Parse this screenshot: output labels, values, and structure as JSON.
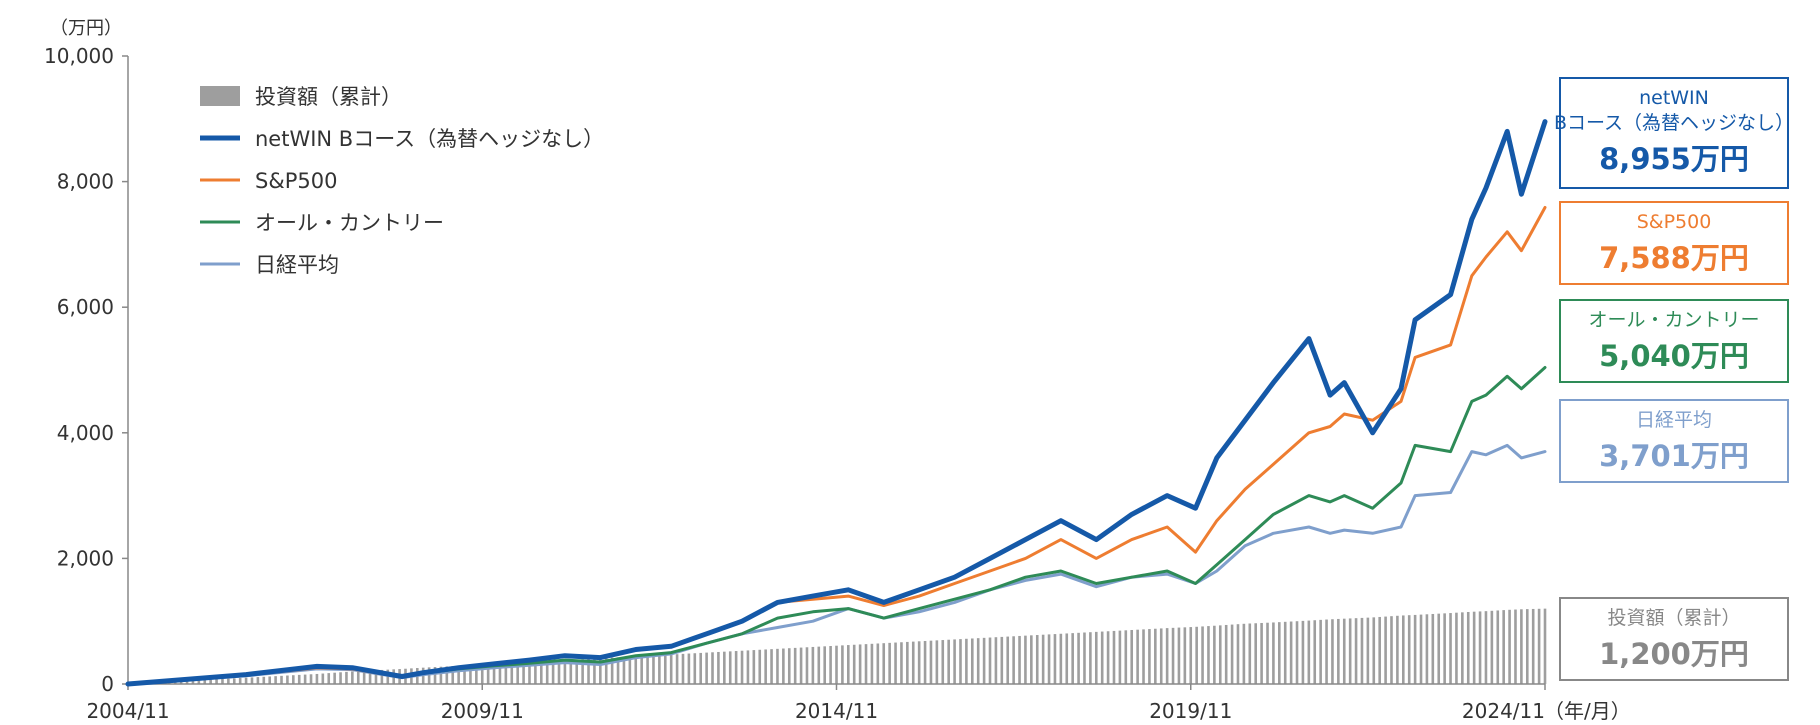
{
  "chart_data": {
    "type": "line",
    "y_unit": "（万円）",
    "x_unit": "（年/月）",
    "ylim": [
      0,
      10000
    ],
    "y_ticks": [
      "0",
      "2,000",
      "4,000",
      "6,000",
      "8,000",
      "10,000"
    ],
    "y_tick_values": [
      0,
      2000,
      4000,
      6000,
      8000,
      10000
    ],
    "x_ticks": [
      "2004/11",
      "2009/11",
      "2014/11",
      "2019/11",
      "2024/11"
    ],
    "x_tick_values": [
      2004.833,
      2009.833,
      2014.833,
      2019.833,
      2024.833
    ],
    "xlim": [
      2004.833,
      2024.833
    ],
    "grid": false,
    "legend_placement": "top-left",
    "x": [
      2004.833,
      2005.5,
      2006.5,
      2007.5,
      2008.0,
      2008.7,
      2009.0,
      2009.5,
      2010.0,
      2010.5,
      2011.0,
      2011.5,
      2012.0,
      2012.5,
      2013.0,
      2013.5,
      2014.0,
      2014.5,
      2015.0,
      2015.5,
      2016.0,
      2016.5,
      2017.0,
      2017.5,
      2018.0,
      2018.5,
      2019.0,
      2019.5,
      2019.9,
      2020.2,
      2020.6,
      2021.0,
      2021.5,
      2021.8,
      2022.0,
      2022.4,
      2022.8,
      2023.0,
      2023.5,
      2023.8,
      2024.0,
      2024.3,
      2024.5,
      2024.833
    ],
    "series": [
      {
        "name": "投資額（累計）",
        "kind": "bar",
        "color": "#9e9e9e",
        "end_label": "1,200万円",
        "values": [
          0,
          40,
          100,
          160,
          200,
          240,
          260,
          290,
          320,
          350,
          380,
          410,
          440,
          470,
          500,
          530,
          560,
          590,
          620,
          650,
          680,
          710,
          740,
          770,
          800,
          830,
          860,
          890,
          910,
          930,
          960,
          980,
          1010,
          1030,
          1040,
          1060,
          1090,
          1100,
          1130,
          1150,
          1160,
          1180,
          1190,
          1200
        ]
      },
      {
        "name": "netWIN Bコース（為替ヘッジなし）",
        "box_name_lines": [
          "netWIN",
          "Bコース（為替ヘッジなし）"
        ],
        "kind": "line",
        "color": "#1559a8",
        "end_label": "8,955万円",
        "values": [
          0,
          60,
          150,
          280,
          260,
          120,
          180,
          260,
          320,
          380,
          450,
          420,
          550,
          600,
          800,
          1000,
          1300,
          1400,
          1500,
          1300,
          1500,
          1700,
          2000,
          2300,
          2600,
          2300,
          2700,
          3000,
          2800,
          3600,
          4200,
          4800,
          5500,
          4600,
          4800,
          4000,
          4700,
          5800,
          6200,
          7400,
          7900,
          8800,
          7800,
          8955
        ]
      },
      {
        "name": "S&P500",
        "kind": "line",
        "color": "#ee7d31",
        "end_label": "7,588万円",
        "values": [
          0,
          55,
          140,
          260,
          240,
          110,
          170,
          250,
          310,
          370,
          440,
          410,
          540,
          600,
          800,
          1000,
          1300,
          1350,
          1400,
          1250,
          1400,
          1600,
          1800,
          2000,
          2300,
          2000,
          2300,
          2500,
          2100,
          2600,
          3100,
          3500,
          4000,
          4100,
          4300,
          4200,
          4500,
          5200,
          5400,
          6500,
          6800,
          7200,
          6900,
          7588
        ]
      },
      {
        "name": "オール・カントリー",
        "kind": "line",
        "color": "#2e8b57",
        "end_label": "5,040万円",
        "values": [
          0,
          55,
          140,
          270,
          250,
          110,
          170,
          240,
          290,
          330,
          380,
          350,
          450,
          500,
          650,
          800,
          1050,
          1150,
          1200,
          1050,
          1200,
          1350,
          1500,
          1700,
          1800,
          1600,
          1700,
          1800,
          1600,
          1900,
          2300,
          2700,
          3000,
          2900,
          3000,
          2800,
          3200,
          3800,
          3700,
          4500,
          4600,
          4900,
          4700,
          5040
        ]
      },
      {
        "name": "日経平均",
        "kind": "line",
        "color": "#7f9fcc",
        "end_label": "3,701万円",
        "values": [
          0,
          55,
          130,
          240,
          230,
          100,
          150,
          210,
          260,
          300,
          340,
          310,
          420,
          480,
          650,
          800,
          900,
          1000,
          1200,
          1050,
          1150,
          1300,
          1500,
          1650,
          1750,
          1550,
          1700,
          1750,
          1600,
          1800,
          2200,
          2400,
          2500,
          2400,
          2450,
          2400,
          2500,
          3000,
          3050,
          3700,
          3650,
          3800,
          3600,
          3701
        ]
      }
    ]
  }
}
